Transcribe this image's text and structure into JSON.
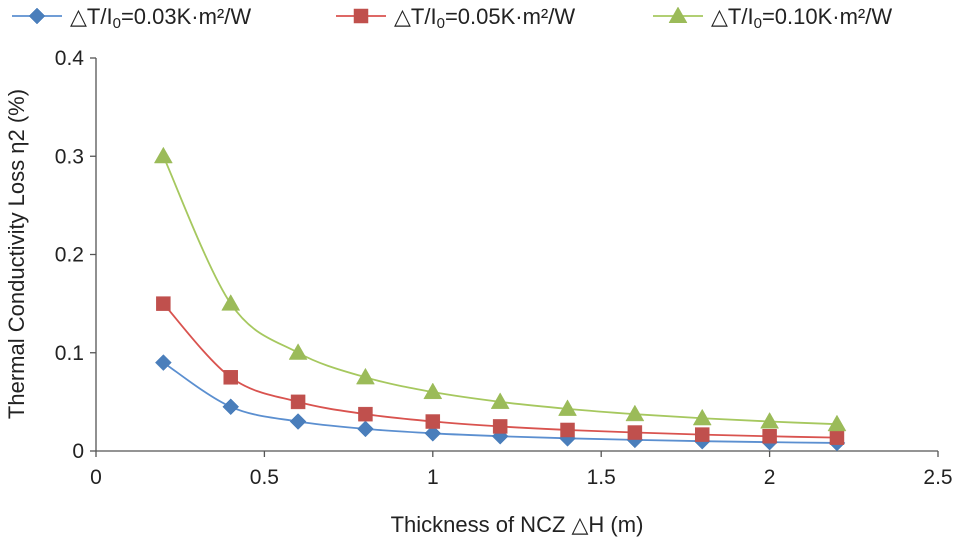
{
  "chart_data": {
    "type": "line",
    "title": "",
    "xlabel": "Thickness of NCZ △H (m)",
    "ylabel": "Thermal Conductivity Loss η2 (%)",
    "xlim": [
      0,
      2.5
    ],
    "ylim": [
      0,
      0.4
    ],
    "xticks": [
      0,
      0.5,
      1,
      1.5,
      2,
      2.5
    ],
    "xtick_labels": [
      "0",
      "0.5",
      "1",
      "1.5",
      "2",
      "2.5"
    ],
    "yticks": [
      0,
      0.1,
      0.2,
      0.3,
      0.4
    ],
    "ytick_labels": [
      "0",
      "0.1",
      "0.2",
      "0.3",
      "0.4"
    ],
    "grid": false,
    "legend_position": "top",
    "x": [
      0.2,
      0.4,
      0.6,
      0.8,
      1.0,
      1.2,
      1.4,
      1.6,
      1.8,
      2.0,
      2.2
    ],
    "series": [
      {
        "name_prefix": "△T/I",
        "name_sub": "0",
        "name_suffix": "=0.03K·m²/W",
        "marker": "diamond",
        "color": "#4a7ebb",
        "line_color": "#5b8fd0",
        "values": [
          0.09,
          0.045,
          0.03,
          0.0225,
          0.018,
          0.015,
          0.0129,
          0.0113,
          0.01,
          0.009,
          0.0082
        ]
      },
      {
        "name_prefix": "△T/I",
        "name_sub": "0",
        "name_suffix": "=0.05K·m²/W",
        "marker": "square",
        "color": "#c0504d",
        "line_color": "#d9534f",
        "values": [
          0.15,
          0.075,
          0.05,
          0.0375,
          0.03,
          0.025,
          0.0214,
          0.0188,
          0.0167,
          0.015,
          0.0136
        ]
      },
      {
        "name_prefix": "△T/I",
        "name_sub": "0",
        "name_suffix": "=0.10K·m²/W",
        "marker": "triangle",
        "color": "#9bbb59",
        "line_color": "#a6c85f",
        "values": [
          0.3,
          0.15,
          0.1,
          0.075,
          0.06,
          0.05,
          0.0429,
          0.0375,
          0.0333,
          0.03,
          0.0273
        ]
      }
    ]
  }
}
